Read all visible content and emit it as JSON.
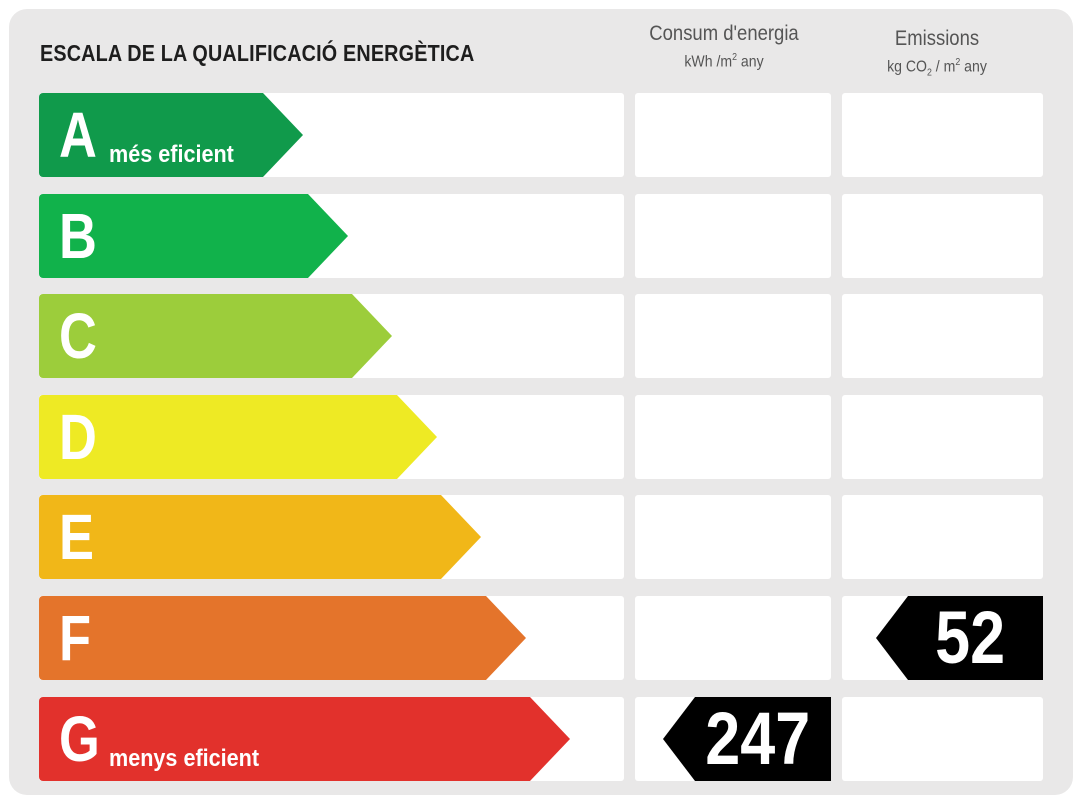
{
  "title": "ESCALA DE LA QUALIFICACIÓ ENERGÈTICA",
  "columns": {
    "consumption": {
      "label": "Consum d'energia",
      "unit_base": "kWh /m",
      "unit_exp": "2",
      "unit_tail": " any"
    },
    "emissions": {
      "label": "Emissions",
      "unit_a": "kg CO",
      "unit_sub": "2",
      "unit_b": " / m",
      "unit_exp": "2",
      "unit_tail": " any"
    }
  },
  "rows": [
    {
      "letter": "A",
      "sublabel": "més eficient",
      "color": "#109a4b"
    },
    {
      "letter": "B",
      "sublabel": "",
      "color": "#11b24b"
    },
    {
      "letter": "C",
      "sublabel": "",
      "color": "#9ccd3b"
    },
    {
      "letter": "D",
      "sublabel": "",
      "color": "#eeea24"
    },
    {
      "letter": "E",
      "sublabel": "",
      "color": "#f1b718"
    },
    {
      "letter": "F",
      "sublabel": "",
      "color": "#e4742b"
    },
    {
      "letter": "G",
      "sublabel": "menys eficient",
      "color": "#e2312c"
    }
  ],
  "ratings": {
    "consumption": {
      "letter": "G",
      "value": "247"
    },
    "emissions": {
      "letter": "F",
      "value": "52"
    }
  }
}
